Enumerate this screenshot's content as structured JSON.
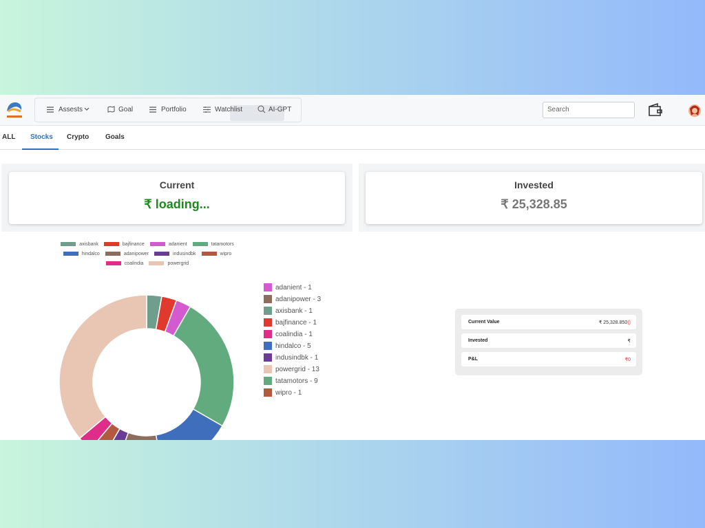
{
  "header": {
    "nav": [
      "Assests",
      "Goal",
      "Portfolio",
      "Watchlist",
      "AI-GPT"
    ],
    "search_placeholder": "Search"
  },
  "tabs": [
    "ALL",
    "Stocks",
    "Crypto",
    "Goals"
  ],
  "cards": [
    {
      "title": "Current",
      "value": "₹ loading..."
    },
    {
      "title": "Invested",
      "value": "₹ 25,328.85"
    }
  ],
  "chart_data": {
    "type": "pie",
    "donut": true,
    "legend": "top",
    "categories": [
      "axisbank",
      "bajfinance",
      "adanient",
      "tatamotors",
      "hindalco",
      "adanipower",
      "indusindbk",
      "wipro",
      "coalindia",
      "powergrid"
    ],
    "values": [
      1,
      1,
      1,
      9,
      5,
      3,
      1,
      1,
      1,
      13
    ],
    "colors": [
      "#6f9f8c",
      "#e0392d",
      "#d45ad0",
      "#62ab7e",
      "#3f6ebd",
      "#8d6e5c",
      "#6b3c96",
      "#b35a3e",
      "#de2e8a",
      "#e8c6b3"
    ]
  },
  "side_list": [
    {
      "label": "adanient - 1",
      "color": "#d45ad0"
    },
    {
      "label": "adanipower - 3",
      "color": "#8d6e5c"
    },
    {
      "label": "axisbank - 1",
      "color": "#6f9f8c"
    },
    {
      "label": "bajfinance - 1",
      "color": "#e0392d"
    },
    {
      "label": "coalindia - 1",
      "color": "#de2e8a"
    },
    {
      "label": "hindalco - 5",
      "color": "#3f6ebd"
    },
    {
      "label": "indusindbk - 1",
      "color": "#6b3c96"
    },
    {
      "label": "powergrid - 13",
      "color": "#e8c6b3"
    },
    {
      "label": "tatamotors - 9",
      "color": "#62ab7e"
    },
    {
      "label": "wipro - 1",
      "color": "#b35a3e"
    }
  ],
  "summary": {
    "rows": [
      {
        "label": "Current Value",
        "value": "₹ 25,328.850",
        "extra": "()"
      },
      {
        "label": "Invested",
        "value": "₹"
      },
      {
        "label": "P&L",
        "value": "₹0"
      }
    ]
  }
}
